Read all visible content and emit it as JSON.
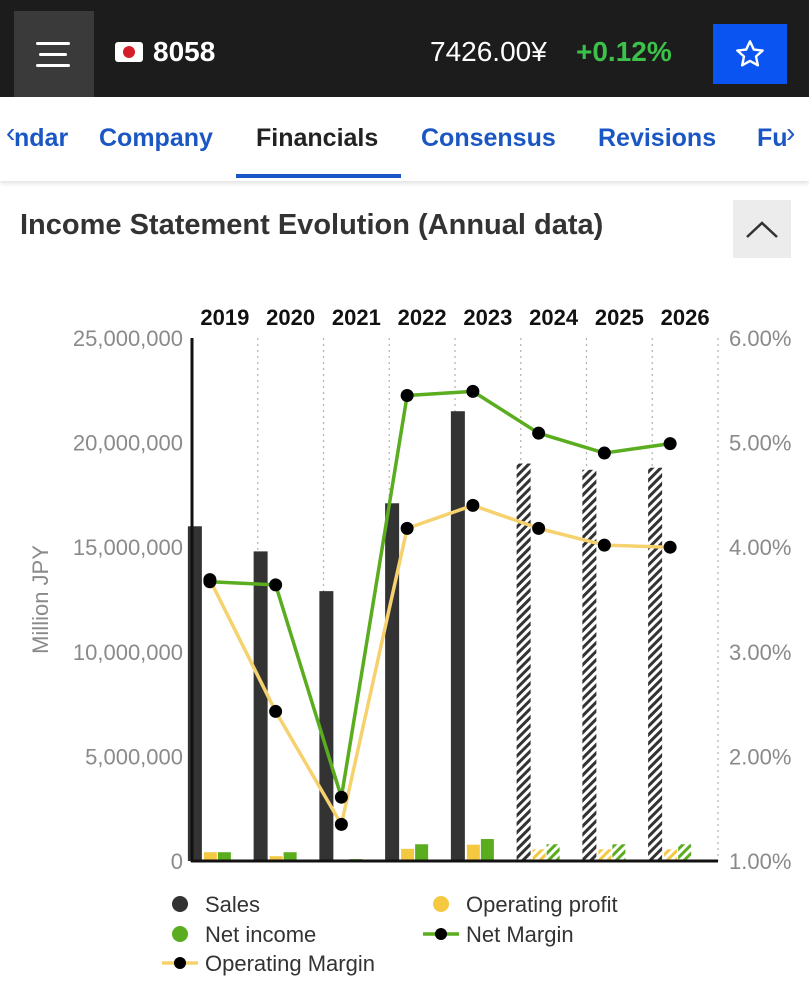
{
  "header": {
    "ticker": "8058",
    "price": "7426.00¥",
    "change": "+0.12%",
    "icons": {
      "menu": "menu-icon",
      "flag": "japan-flag-icon",
      "star": "star-icon"
    }
  },
  "tabs": [
    {
      "label": "ndar"
    },
    {
      "label": "Company"
    },
    {
      "label": "Financials"
    },
    {
      "label": "Consensus"
    },
    {
      "label": "Revisions"
    },
    {
      "label": "Fu"
    }
  ],
  "section": {
    "title": "Income Statement Evolution (Annual data)"
  },
  "colors": {
    "sales": "#333333",
    "operating_profit": "#f5c842",
    "net_income": "#5aad1e",
    "net_margin_line": "#5aad1e",
    "operating_margin_line": "#f5d26e",
    "accent": "#1a56c4",
    "topbar": "#1c1c1c",
    "positive": "#3cc24a"
  },
  "chart_data": {
    "type": "bar",
    "categories": [
      "2019",
      "2020",
      "2021",
      "2022",
      "2023",
      "2024",
      "2025",
      "2026"
    ],
    "estimated_from_index": 5,
    "ylabel": "Million JPY",
    "ylim": [
      0,
      25000000
    ],
    "y_ticks": [
      "0",
      "5,000,000",
      "10,000,000",
      "15,000,000",
      "20,000,000",
      "25,000,000"
    ],
    "y2lim": [
      0.01,
      0.06
    ],
    "y2_ticks": [
      "1.00%",
      "2.00%",
      "3.00%",
      "4.00%",
      "5.00%",
      "6.00%"
    ],
    "series": [
      {
        "name": "Sales",
        "type": "bar",
        "values": [
          16000000,
          14800000,
          12900000,
          17100000,
          21500000,
          19000000,
          18700000,
          18800000
        ]
      },
      {
        "name": "Operating profit",
        "type": "bar",
        "values": [
          420000,
          230000,
          30000,
          580000,
          780000,
          560000,
          560000,
          560000
        ]
      },
      {
        "name": "Net income",
        "type": "bar",
        "values": [
          420000,
          420000,
          90000,
          800000,
          1050000,
          800000,
          800000,
          800000
        ]
      },
      {
        "name": "Net Margin",
        "type": "line",
        "axis": "right",
        "values": [
          0.0367,
          0.0364,
          0.0161,
          0.0545,
          0.0549,
          0.0509,
          0.049,
          0.0499
        ]
      },
      {
        "name": "Operating Margin",
        "type": "line",
        "axis": "right",
        "values": [
          0.0369,
          0.0243,
          0.0135,
          0.0418,
          0.044,
          0.0418,
          0.0402,
          0.04
        ]
      }
    ],
    "legend": [
      "Sales",
      "Operating profit",
      "Net income",
      "Net Margin",
      "Operating Margin"
    ],
    "legend_position": "bottom",
    "grid": "vertical dotted"
  }
}
